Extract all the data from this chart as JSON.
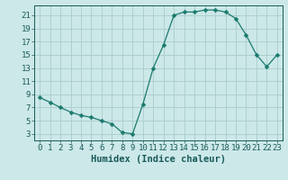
{
  "x": [
    0,
    1,
    2,
    3,
    4,
    5,
    6,
    7,
    8,
    9,
    10,
    11,
    12,
    13,
    14,
    15,
    16,
    17,
    18,
    19,
    20,
    21,
    22,
    23
  ],
  "y": [
    8.5,
    7.8,
    7.0,
    6.3,
    5.8,
    5.5,
    5.0,
    4.5,
    3.2,
    3.0,
    7.5,
    13.0,
    16.5,
    21.0,
    21.5,
    21.5,
    21.8,
    21.8,
    21.5,
    20.5,
    18.0,
    15.0,
    13.2,
    15.0
  ],
  "line_color": "#1a7a6e",
  "marker": "D",
  "marker_size": 2.5,
  "bg_color": "#cce8e8",
  "grid_color": "#aacccc",
  "tick_color": "#1a5a5a",
  "xlabel": "Humidex (Indice chaleur)",
  "xlim": [
    -0.5,
    23.5
  ],
  "ylim": [
    2,
    22.5
  ],
  "yticks": [
    3,
    5,
    7,
    9,
    11,
    13,
    15,
    17,
    19,
    21
  ],
  "xticks": [
    0,
    1,
    2,
    3,
    4,
    5,
    6,
    7,
    8,
    9,
    10,
    11,
    12,
    13,
    14,
    15,
    16,
    17,
    18,
    19,
    20,
    21,
    22,
    23
  ],
  "xlabel_fontsize": 7.5,
  "tick_fontsize": 6.5
}
